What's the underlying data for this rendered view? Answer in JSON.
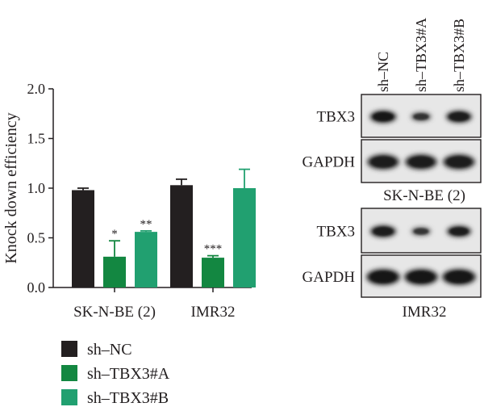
{
  "chart_data": [
    {
      "type": "bar",
      "ylabel": "Knock down efficiency",
      "xlabel": "",
      "ylim": [
        0,
        2.0
      ],
      "yticks": [
        0.0,
        0.5,
        1.0,
        1.5,
        2.0
      ],
      "ytick_labels": [
        "0.0",
        "0.5",
        "1.0",
        "1.5",
        "2.0"
      ],
      "categories": [
        "SK-N-BE (2)",
        "IMR32"
      ],
      "grid": false,
      "legend_position": "bottom-left",
      "series": [
        {
          "name": "sh–NC",
          "color": "#231f20",
          "values": [
            0.98,
            1.03
          ],
          "errors": [
            0.02,
            0.06
          ],
          "significance": [
            "",
            ""
          ]
        },
        {
          "name": "sh–TBX3#A",
          "color": "#138741",
          "values": [
            0.31,
            0.3
          ],
          "errors": [
            0.16,
            0.02
          ],
          "significance": [
            "*",
            "***"
          ]
        },
        {
          "name": "sh–TBX3#B",
          "color": "#21a070",
          "values": [
            0.56,
            1.0
          ],
          "errors": [
            0.01,
            0.19
          ],
          "significance": [
            "**",
            ""
          ]
        }
      ]
    }
  ],
  "blot": {
    "lanes": [
      "sh–NC",
      "sh–TBX3#A",
      "sh–TBX3#B"
    ],
    "panels": [
      {
        "cell_line": "SK-N-BE (2)",
        "rows": [
          {
            "label": "TBX3",
            "band_intensity": [
              0.95,
              0.45,
              0.9
            ]
          },
          {
            "label": "GAPDH",
            "band_intensity": [
              0.9,
              0.9,
              0.9
            ]
          }
        ]
      },
      {
        "cell_line": "IMR32",
        "rows": [
          {
            "label": "TBX3",
            "band_intensity": [
              0.9,
              0.4,
              0.8
            ]
          },
          {
            "label": "GAPDH",
            "band_intensity": [
              1.0,
              1.0,
              1.0
            ]
          }
        ]
      }
    ]
  }
}
